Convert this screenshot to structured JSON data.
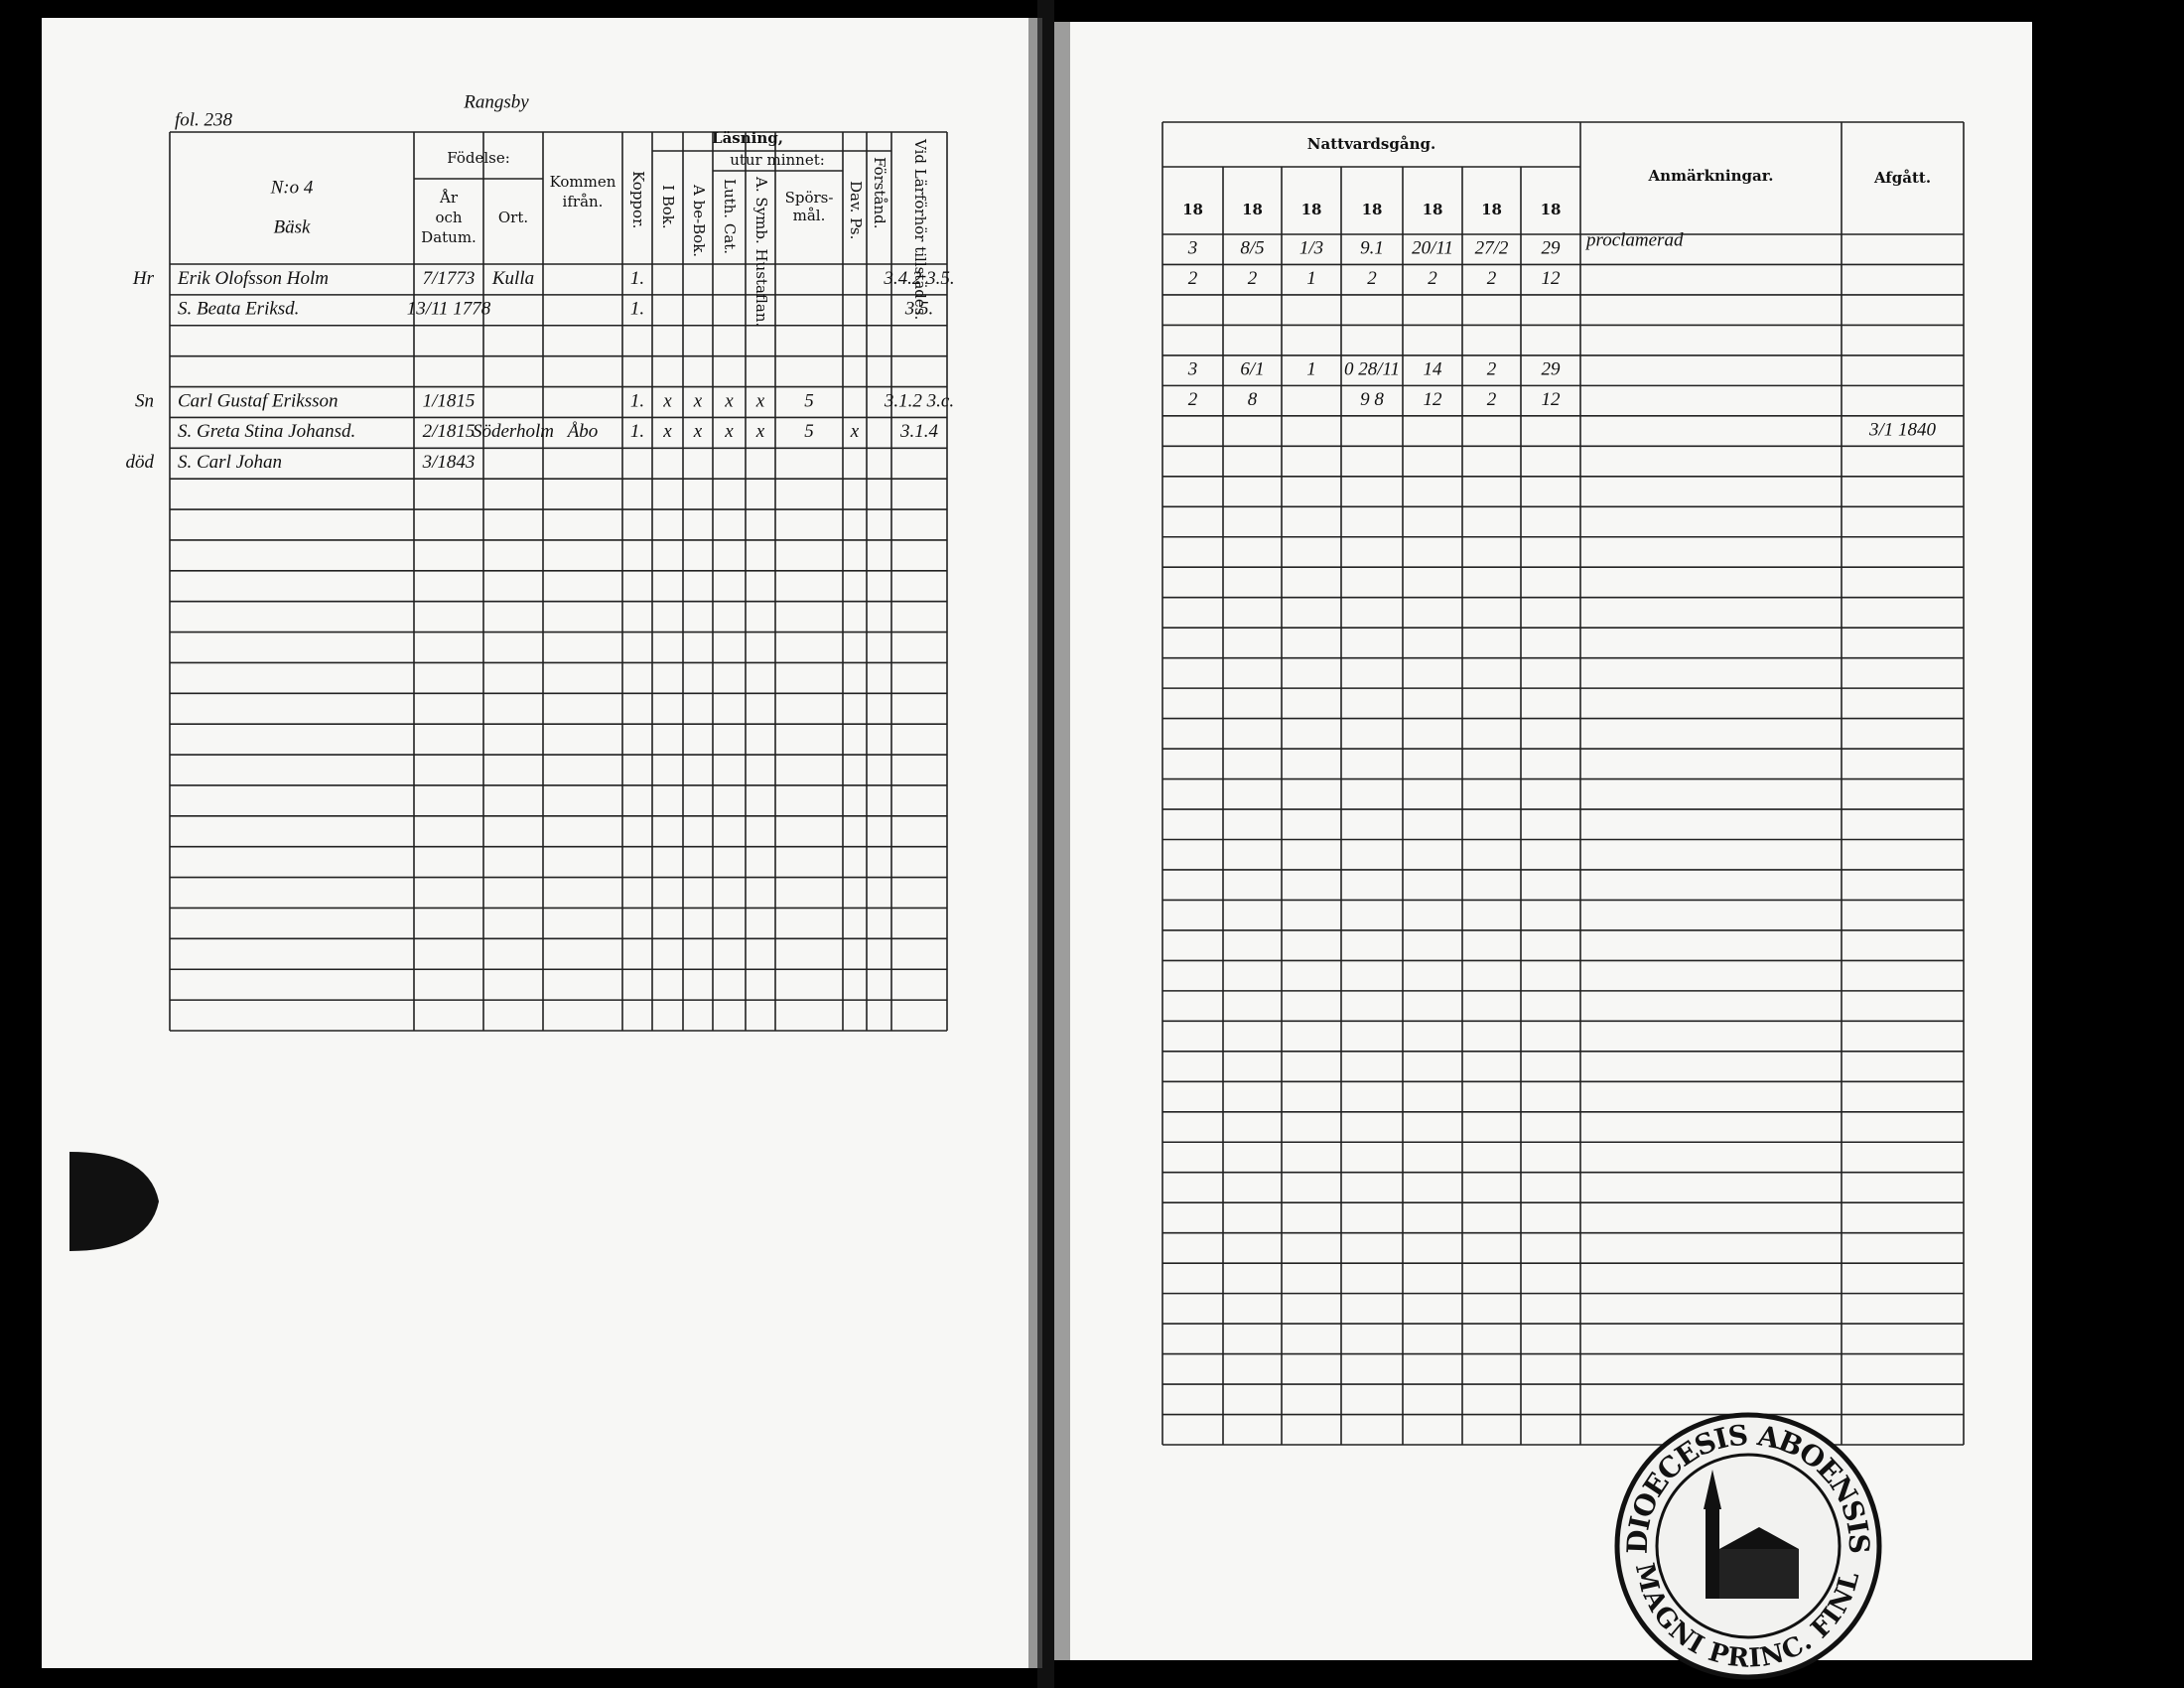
{
  "left_page": {
    "folio": "fol. 238",
    "place": "Rangsby",
    "household": "N:o 4",
    "farm": "Bäsk",
    "header": {
      "birth": "Födelse:",
      "birth_date": [
        "År",
        "och",
        "Datum."
      ],
      "birth_place": "Ort.",
      "came_from": [
        "Kommen",
        "ifrån."
      ],
      "smallpox": "Koppor.",
      "reading": "Läsning,",
      "by_heart": "utur minnet:",
      "from_book": "I Bok.",
      "abc_book": "A be-Bok.",
      "luth_cat": "Luth. Cat.",
      "symb": "A. Symb. Hustaflan.",
      "questions": [
        "Spörs-",
        "mål."
      ],
      "davids_psalms": "Dav. Ps.",
      "understanding": "Förstånd.",
      "examinations": "Vid Lärförhör tillstädes."
    },
    "rows": [
      {
        "mark": "Hr",
        "cells": [
          "Erik Olofsson Holm",
          "7/1773",
          "Kulla",
          null,
          "1.",
          null,
          null,
          null,
          null,
          null,
          null,
          null,
          "3.4.2 3.5."
        ]
      },
      {
        "cells": [
          "S. Beata Eriksd.",
          "13/11 1778",
          null,
          null,
          "1.",
          null,
          null,
          null,
          null,
          null,
          null,
          null,
          "3.5."
        ]
      },
      null,
      null,
      {
        "mark": "Sn",
        "cells": [
          "Carl Gustaf Eriksson",
          "1/1815",
          null,
          null,
          "1.",
          "x",
          "x",
          "x",
          "x",
          "5",
          null,
          null,
          "3.1.2 3.c."
        ]
      },
      {
        "cells": [
          "S. Greta Stina Johansd.",
          "2/1815",
          "Söderholm",
          "Åbo",
          "1.",
          "x",
          "x",
          "x",
          "x",
          "5",
          "x",
          null,
          "3.1.4"
        ]
      },
      {
        "mark": "död",
        "cells": [
          "S. Carl Johan",
          "3/1843",
          null,
          null,
          null,
          null,
          null,
          null,
          null,
          null,
          null,
          null,
          null
        ]
      }
    ]
  },
  "right_page": {
    "header": {
      "communion": "Nattvardsgång.",
      "years": [
        "18",
        "18",
        "18",
        "18",
        "18",
        "18",
        "18"
      ],
      "remarks": "Anmärkningar.",
      "departed": "Afgått."
    },
    "rows": [
      [
        "3",
        "8/5",
        "1/3",
        "9.1",
        "20/11",
        "27/2",
        "29",
        "proclamerad",
        null
      ],
      [
        "2",
        "2",
        "1",
        "2",
        "2",
        "2",
        "12",
        null,
        null
      ],
      null,
      null,
      [
        "3",
        "6/1",
        "1",
        "0 28/11",
        "14",
        "2",
        "29",
        null,
        null
      ],
      [
        "2",
        "8",
        null,
        "9 8",
        "12",
        "2",
        "12",
        null,
        null
      ],
      [
        null,
        null,
        null,
        null,
        null,
        null,
        null,
        null,
        "3/1 1840"
      ]
    ]
  },
  "stamp": {
    "top": "DIOECESIS ABOENSIS",
    "bottom": "MAGNI PRINC. FINL."
  }
}
